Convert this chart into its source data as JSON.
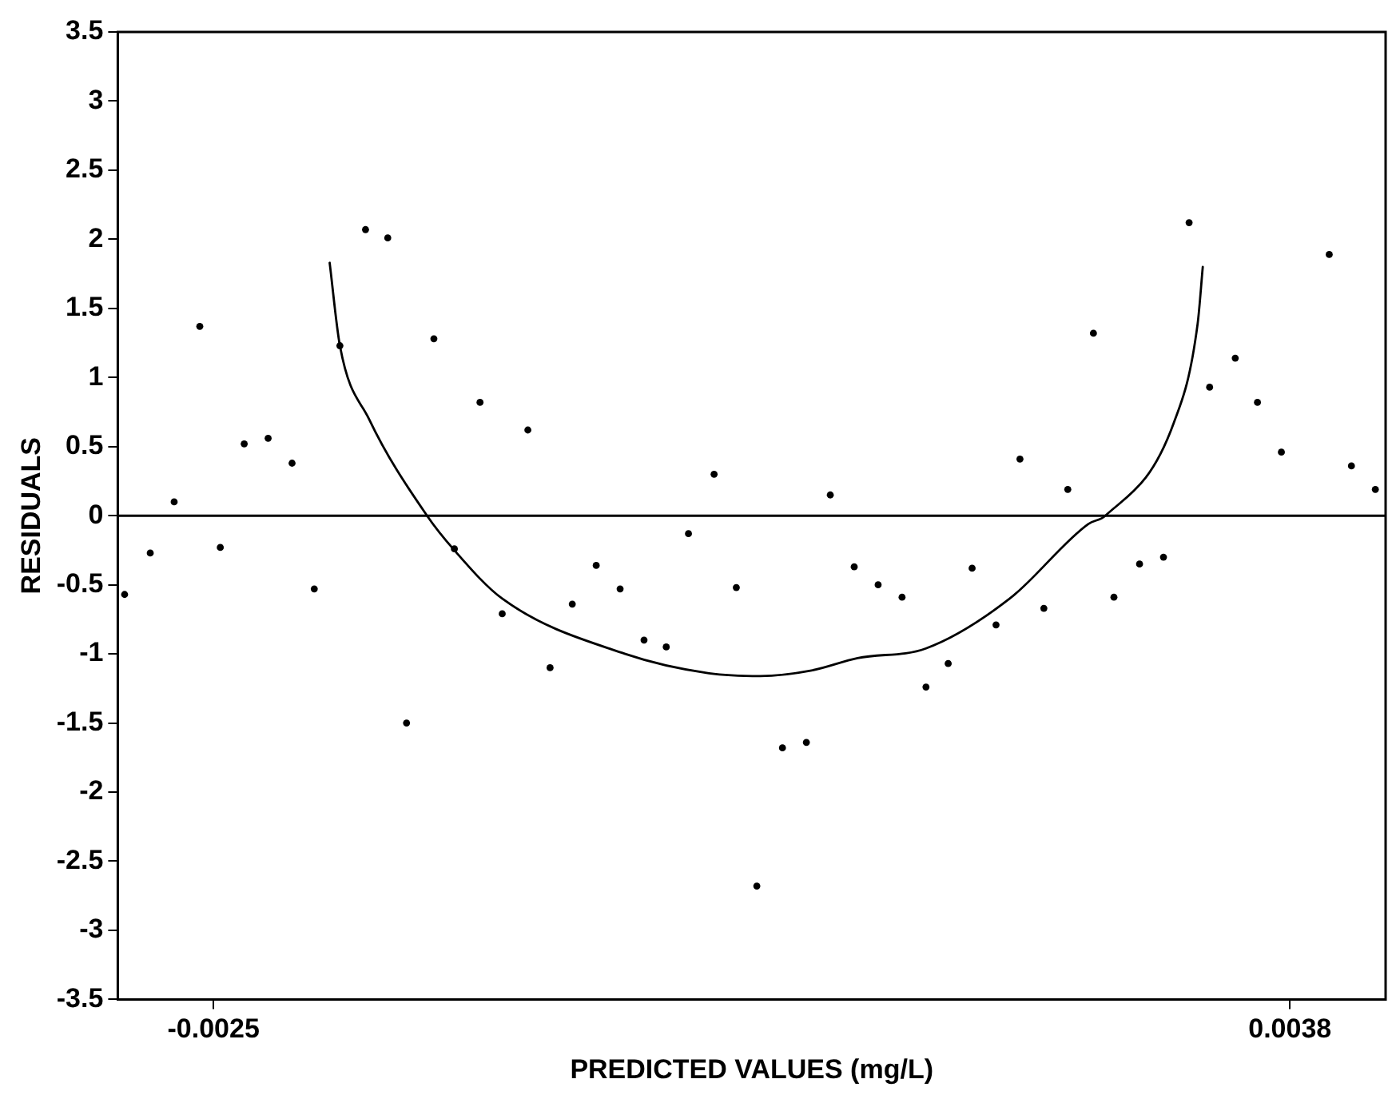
{
  "chart_data": {
    "type": "scatter",
    "xlabel": "PREDICTED VALUES (mg/L)",
    "ylabel": "RESIDUALS",
    "xlim": [
      -0.00306,
      0.00436
    ],
    "xticks": [
      -0.0025,
      0.0038
    ],
    "ylim": [
      -3.5,
      3.5
    ],
    "yticks": [
      -3.5,
      -3,
      -2.5,
      -2,
      -1.5,
      -1,
      -0.5,
      0,
      0.5,
      1,
      1.5,
      2,
      2.5,
      3,
      3.5
    ],
    "marker": "circle",
    "legend": false,
    "ref_lines": [
      {
        "axis": "y",
        "value": 0,
        "label": null,
        "color": "#000000"
      }
    ],
    "series": [
      {
        "color": "#000000",
        "x": [
          -0.00302,
          -0.00287,
          -0.00273,
          -0.00258,
          -0.00246,
          -0.00232,
          -0.00218,
          -0.00204,
          -0.00191,
          -0.00176,
          -0.00161,
          -0.00148,
          -0.00137,
          -0.00121,
          -0.00109,
          -0.00094,
          -0.00081,
          -0.00066,
          -0.00053,
          -0.0004,
          -0.00026,
          -0.00012,
          2e-05,
          0.00015,
          0.00028,
          0.00043,
          0.00056,
          0.00068,
          0.00083,
          0.00097,
          0.00111,
          0.00125,
          0.00139,
          0.00153,
          0.00167,
          0.0018,
          0.00194,
          0.00208,
          0.00222,
          0.00236,
          0.0025,
          0.00265,
          0.00277,
          0.00292,
          0.00306,
          0.00321,
          0.00333,
          0.00348,
          0.00361,
          0.00375,
          0.00403,
          0.00416,
          0.0043
        ],
        "values": [
          -0.57,
          -0.27,
          0.1,
          1.37,
          -0.23,
          0.52,
          0.56,
          0.38,
          -0.53,
          1.23,
          2.07,
          2.01,
          -1.5,
          1.28,
          -0.24,
          0.82,
          -0.71,
          0.62,
          -1.1,
          -0.64,
          -0.36,
          -0.53,
          -0.9,
          -0.95,
          -0.13,
          0.3,
          -0.52,
          -2.68,
          -1.68,
          -1.64,
          0.15,
          -0.37,
          -0.5,
          -0.59,
          -1.24,
          -1.07,
          -0.38,
          -0.79,
          0.41,
          -0.67,
          0.19,
          1.32,
          -0.59,
          -0.35,
          -0.3,
          2.12,
          0.93,
          1.14,
          0.82,
          0.46,
          1.89,
          0.36,
          0.19
        ]
      },
      {
        "type": "line",
        "color": "#000000",
        "marker": "none",
        "x": [
          -0.00182,
          -0.00176,
          -0.00159,
          -0.00125,
          -0.00109,
          -0.00081,
          -9e-05,
          0.0004,
          0.0007,
          0.001,
          0.00127,
          0.00167,
          0.00216,
          0.00262,
          0.00272,
          0.00312,
          0.00326,
          0.00329
        ],
        "values": [
          1.83,
          1.23,
          0.7,
          0,
          -0.25,
          -0.6,
          -1.0,
          -1.14,
          -1.16,
          -1.12,
          -1.03,
          -0.96,
          -0.6,
          -0.06,
          0,
          0.67,
          1.39,
          1.8
        ]
      }
    ]
  }
}
